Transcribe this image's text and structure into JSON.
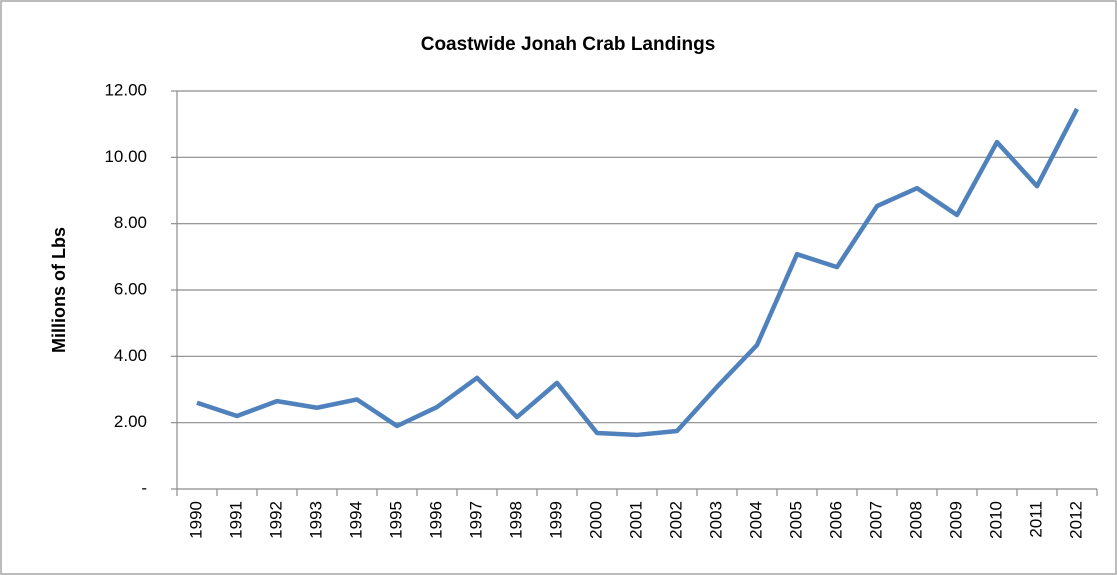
{
  "chart_data": {
    "type": "line",
    "title": "Coastwide Jonah Crab Landings",
    "y_label": "Millions of Lbs",
    "categories": [
      "1990",
      "1991",
      "1992",
      "1993",
      "1994",
      "1995",
      "1996",
      "1997",
      "1998",
      "1999",
      "2000",
      "2001",
      "2002",
      "2003",
      "2004",
      "2005",
      "2006",
      "2007",
      "2008",
      "2009",
      "2010",
      "2011",
      "2012"
    ],
    "series": [
      {
        "name": "Landings",
        "color": "#4f81bd",
        "values": [
          2.6,
          2.2,
          2.65,
          2.45,
          2.7,
          1.9,
          2.47,
          3.35,
          2.17,
          3.2,
          1.69,
          1.63,
          1.75,
          3.08,
          4.34,
          7.08,
          6.69,
          8.53,
          9.07,
          8.26,
          10.46,
          9.13,
          11.46
        ]
      }
    ],
    "ylim": [
      0,
      12
    ],
    "yticks": [
      {
        "value": 0,
        "label": "-"
      },
      {
        "value": 2,
        "label": "2.00"
      },
      {
        "value": 4,
        "label": "4.00"
      },
      {
        "value": 6,
        "label": "6.00"
      },
      {
        "value": 8,
        "label": "8.00"
      },
      {
        "value": 10,
        "label": "10.00"
      },
      {
        "value": 12,
        "label": "12.00"
      }
    ],
    "grid": true
  }
}
